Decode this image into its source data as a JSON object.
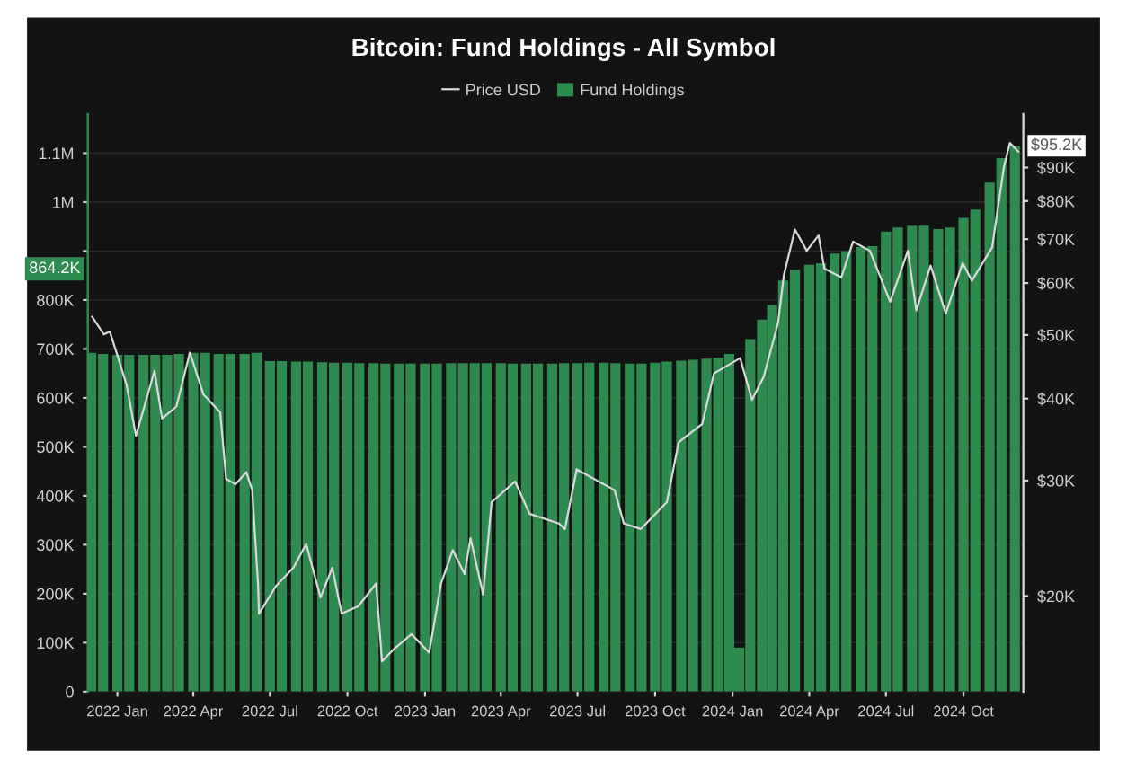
{
  "chart_data": {
    "type": "bar",
    "title": "Bitcoin: Fund Holdings - All Symbol",
    "x": [
      "2021-12-01",
      "2021-12-15",
      "2022-01-01",
      "2022-01-15",
      "2022-02-01",
      "2022-02-15",
      "2022-03-01",
      "2022-03-15",
      "2022-04-01",
      "2022-04-15",
      "2022-05-01",
      "2022-05-15",
      "2022-06-01",
      "2022-06-15",
      "2022-07-01",
      "2022-07-15",
      "2022-08-01",
      "2022-08-15",
      "2022-09-01",
      "2022-09-15",
      "2022-10-01",
      "2022-10-15",
      "2022-11-01",
      "2022-11-15",
      "2022-12-01",
      "2022-12-15",
      "2023-01-01",
      "2023-01-15",
      "2023-02-01",
      "2023-02-15",
      "2023-03-01",
      "2023-03-15",
      "2023-04-01",
      "2023-04-15",
      "2023-05-01",
      "2023-05-15",
      "2023-06-01",
      "2023-06-15",
      "2023-07-01",
      "2023-07-15",
      "2023-08-01",
      "2023-08-15",
      "2023-09-01",
      "2023-09-15",
      "2023-10-01",
      "2023-10-15",
      "2023-11-01",
      "2023-11-15",
      "2023-12-01",
      "2023-12-15",
      "2023-12-28",
      "2024-01-09",
      "2024-01-22",
      "2024-02-05",
      "2024-02-17",
      "2024-03-01",
      "2024-03-15",
      "2024-04-01",
      "2024-04-15",
      "2024-05-01",
      "2024-05-15",
      "2024-06-01",
      "2024-06-15",
      "2024-07-01",
      "2024-07-15",
      "2024-08-01",
      "2024-08-15",
      "2024-09-01",
      "2024-09-15",
      "2024-10-01",
      "2024-10-15",
      "2024-11-01",
      "2024-11-15",
      "2024-12-01"
    ],
    "series": [
      {
        "name": "Fund Holdings",
        "color": "#2f8a4f",
        "values": [
          692000,
          690000,
          688000,
          688000,
          688000,
          688000,
          688000,
          690000,
          692000,
          692000,
          690000,
          690000,
          690000,
          692000,
          675000,
          675000,
          674000,
          674000,
          673000,
          672000,
          672000,
          671000,
          671000,
          670000,
          670000,
          670000,
          670000,
          670000,
          671000,
          671000,
          671000,
          671000,
          671000,
          670000,
          670000,
          670000,
          670000,
          671000,
          671000,
          672000,
          672000,
          671000,
          670000,
          670000,
          672000,
          674000,
          676000,
          678000,
          680000,
          682000,
          690000,
          90000,
          720000,
          760000,
          790000,
          840000,
          862000,
          872000,
          875000,
          895000,
          900000,
          908000,
          910000,
          940000,
          948000,
          952000,
          952000,
          945000,
          948000,
          968000,
          985000,
          1040000,
          1090000,
          1115000
        ]
      },
      {
        "name": "Price USD",
        "type": "line",
        "axis": "y2",
        "color": "#d9d9d9",
        "x": [
          "2021-12-02",
          "2021-12-16",
          "2021-12-23",
          "2022-01-02",
          "2022-01-12",
          "2022-01-23",
          "2022-02-02",
          "2022-02-14",
          "2022-02-23",
          "2022-03-12",
          "2022-03-28",
          "2022-04-13",
          "2022-05-03",
          "2022-05-10",
          "2022-05-21",
          "2022-06-03",
          "2022-06-10",
          "2022-06-17",
          "2022-06-18",
          "2022-07-08",
          "2022-07-29",
          "2022-08-13",
          "2022-08-30",
          "2022-09-13",
          "2022-09-24",
          "2022-10-14",
          "2022-11-04",
          "2022-11-11",
          "2022-11-25",
          "2022-12-16",
          "2023-01-06",
          "2023-01-20",
          "2023-02-03",
          "2023-02-17",
          "2023-02-24",
          "2023-03-11",
          "2023-03-21",
          "2023-04-18",
          "2023-05-05",
          "2023-06-09",
          "2023-06-16",
          "2023-06-30",
          "2023-08-14",
          "2023-08-25",
          "2023-09-14",
          "2023-10-15",
          "2023-10-29",
          "2023-11-26",
          "2023-12-10",
          "2024-01-10",
          "2024-01-24",
          "2024-02-07",
          "2024-02-24",
          "2024-03-02",
          "2024-03-15",
          "2024-03-29",
          "2024-04-12",
          "2024-04-19",
          "2024-05-09",
          "2024-05-23",
          "2024-06-12",
          "2024-07-06",
          "2024-07-27",
          "2024-08-06",
          "2024-08-23",
          "2024-09-10",
          "2024-09-30",
          "2024-10-11",
          "2024-11-04",
          "2024-11-18",
          "2024-11-25",
          "2024-12-05"
        ],
        "values": [
          53300,
          50100,
          50600,
          46100,
          41900,
          35100,
          38900,
          44100,
          37300,
          38900,
          47000,
          40600,
          38100,
          30200,
          29600,
          30900,
          29000,
          20700,
          18800,
          20700,
          22100,
          24000,
          19900,
          22100,
          18800,
          19300,
          20900,
          15900,
          16600,
          17500,
          16400,
          20900,
          23500,
          21600,
          24500,
          20100,
          27800,
          29900,
          26700,
          25800,
          25300,
          31200,
          29000,
          25800,
          25300,
          27800,
          34300,
          36600,
          43700,
          46100,
          39800,
          43200,
          52200,
          61800,
          72400,
          67200,
          70900,
          63100,
          61200,
          69400,
          67200,
          56200,
          67200,
          54500,
          63800,
          53900,
          64400,
          60500,
          68000,
          90200,
          98100,
          95200
        ]
      }
    ],
    "xlim": [
      "2021-11-27",
      "2024-12-11"
    ],
    "xticks": [
      {
        "value": "2022-01-01",
        "label": "2022 Jan"
      },
      {
        "value": "2022-04-01",
        "label": "2022 Apr"
      },
      {
        "value": "2022-07-01",
        "label": "2022 Jul"
      },
      {
        "value": "2022-10-01",
        "label": "2022 Oct"
      },
      {
        "value": "2023-01-01",
        "label": "2023 Jan"
      },
      {
        "value": "2023-04-01",
        "label": "2023 Apr"
      },
      {
        "value": "2023-07-01",
        "label": "2023 Jul"
      },
      {
        "value": "2023-10-01",
        "label": "2023 Oct"
      },
      {
        "value": "2024-01-01",
        "label": "2024 Jan"
      },
      {
        "value": "2024-04-01",
        "label": "2024 Apr"
      },
      {
        "value": "2024-07-01",
        "label": "2024 Jul"
      },
      {
        "value": "2024-10-01",
        "label": "2024 Oct"
      }
    ],
    "ylim": [
      0,
      1180000
    ],
    "yticks": [
      0,
      {
        "value": 100000,
        "label": "100K"
      },
      {
        "value": 200000,
        "label": "200K"
      },
      {
        "value": 300000,
        "label": "300K"
      },
      {
        "value": 400000,
        "label": "400K"
      },
      {
        "value": 500000,
        "label": "500K"
      },
      {
        "value": 600000,
        "label": "600K"
      },
      {
        "value": 700000,
        "label": "700K"
      },
      {
        "value": 800000,
        "label": "800K"
      },
      {
        "value": 900000,
        "label": null
      },
      {
        "value": 1000000,
        "label": "1M"
      },
      {
        "value": 1100000,
        "label": "1.1M"
      }
    ],
    "log": "y2",
    "y2lim": [
      14300,
      108600
    ],
    "y2ticks": [
      {
        "value": 20000,
        "label": "$20K"
      },
      {
        "value": 30000,
        "label": "$30K"
      },
      {
        "value": 40000,
        "label": "$40K"
      },
      {
        "value": 50000,
        "label": "$50K"
      },
      {
        "value": 60000,
        "label": "$60K"
      },
      {
        "value": 70000,
        "label": "$70K"
      },
      {
        "value": 80000,
        "label": "$80K"
      },
      {
        "value": 90000,
        "label": "$90K"
      }
    ],
    "grid": "y",
    "legend": "top",
    "annotations": [
      "864.2K",
      "$95.2K"
    ]
  }
}
